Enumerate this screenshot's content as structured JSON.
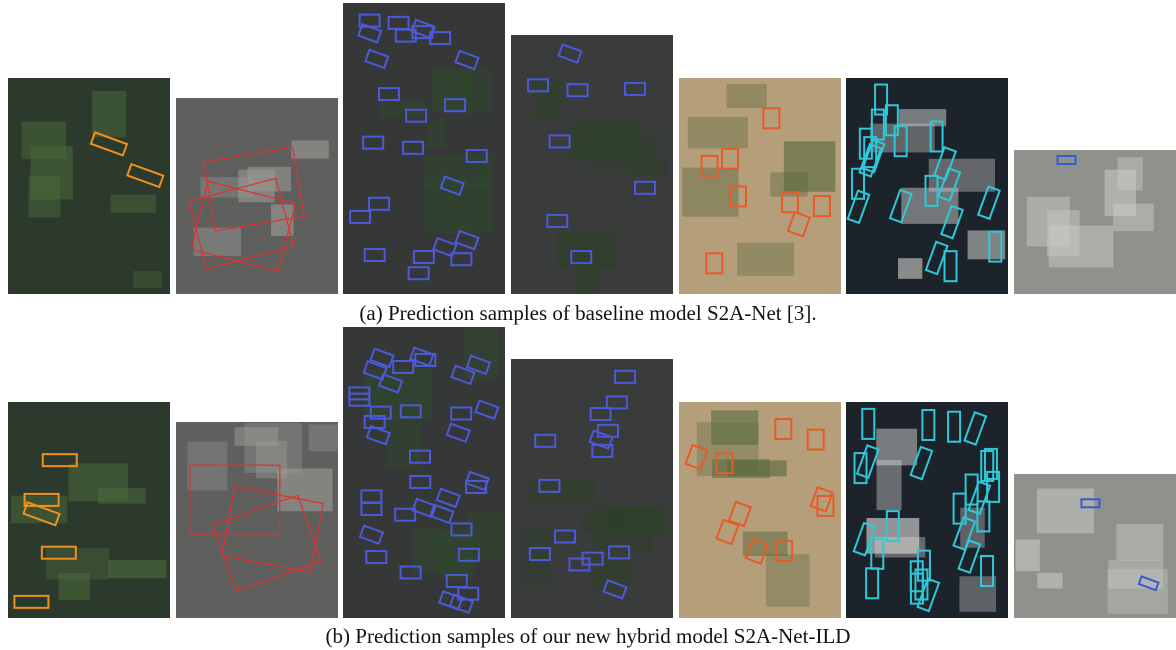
{
  "figure": {
    "rows": [
      {
        "caption": "(a) Prediction samples of baseline model S2A-Net [3]."
      },
      {
        "caption": "(b) Prediction samples of our new hybrid model S2A-Net-ILD"
      }
    ]
  }
}
